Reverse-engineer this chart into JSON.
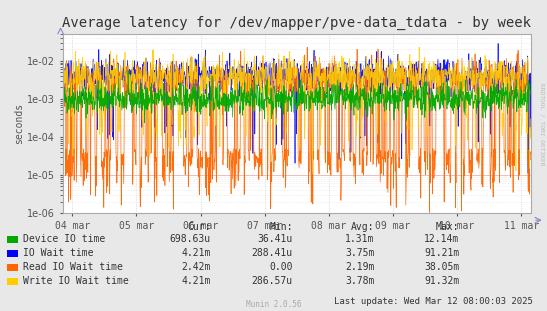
{
  "title": "Average latency for /dev/mapper/pve-data_tdata - by week",
  "ylabel": "seconds",
  "watermark": "Munin 2.0.56",
  "rrdtool_label": "RRDTOOL / TOBI OETIKER",
  "background_color": "#e8e8e8",
  "plot_bg_color": "#ffffff",
  "grid_color_major": "#dddddd",
  "grid_color_minor": "#eeeeee",
  "ylim_min": 1e-06,
  "ylim_max": 0.05,
  "xtick_labels": [
    "04 mar",
    "05 mar",
    "06 mar",
    "07 mar",
    "08 mar",
    "09 mar",
    "10 mar",
    "11 mar"
  ],
  "legend_entries": [
    {
      "label": "Device IO time",
      "color": "#00aa00"
    },
    {
      "label": "IO Wait time",
      "color": "#0000ff"
    },
    {
      "label": "Read IO Wait time",
      "color": "#ff6600"
    },
    {
      "label": "Write IO Wait time",
      "color": "#ffcc00"
    }
  ],
  "legend_cols": [
    {
      "header": "Cur:",
      "values": [
        "698.63u",
        "4.21m",
        "2.42m",
        "4.21m"
      ]
    },
    {
      "header": "Min:",
      "values": [
        "36.41u",
        "288.41u",
        "0.00",
        "286.57u"
      ]
    },
    {
      "header": "Avg:",
      "values": [
        "1.31m",
        "3.75m",
        "2.19m",
        "3.78m"
      ]
    },
    {
      "header": "Max:",
      "values": [
        "12.14m",
        "91.21m",
        "38.05m",
        "91.32m"
      ]
    }
  ],
  "last_update": "Last update: Wed Mar 12 08:00:03 2025",
  "title_fontsize": 10,
  "axis_fontsize": 7,
  "legend_fontsize": 7
}
